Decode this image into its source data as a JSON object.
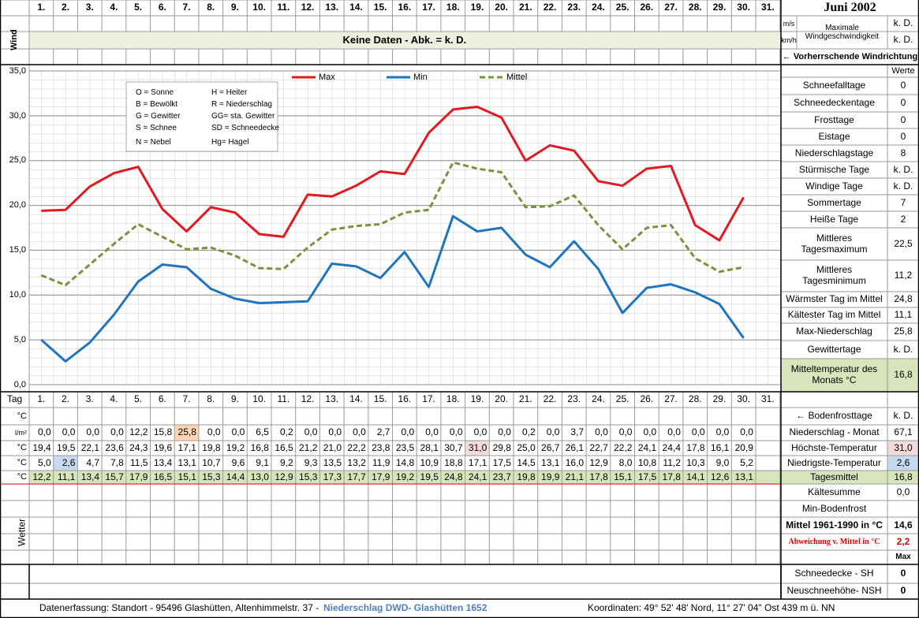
{
  "header": {
    "month": "Juni 2002"
  },
  "wind": {
    "label": "Wind",
    "note": "Keine Daten - Abk. = k. D.",
    "units": [
      "m/s",
      "km/h"
    ],
    "max_speed_label": "Maximale Windgeschwindigkeit",
    "values": [
      "k. D.",
      "k. D."
    ],
    "direction": "← Vorherrschende Windrichtung"
  },
  "chart_data": {
    "type": "line",
    "categories": [
      "1.",
      "2.",
      "3.",
      "4.",
      "5.",
      "6.",
      "7.",
      "8.",
      "9.",
      "10.",
      "11.",
      "12.",
      "13.",
      "14.",
      "15.",
      "16.",
      "17.",
      "18.",
      "19.",
      "20.",
      "21.",
      "22.",
      "23.",
      "24.",
      "25.",
      "26.",
      "27.",
      "28.",
      "29.",
      "30.",
      "31."
    ],
    "series": [
      {
        "name": "Max",
        "color": "#e3191f",
        "values": [
          19.4,
          19.5,
          22.1,
          23.6,
          24.3,
          19.6,
          17.1,
          19.8,
          19.2,
          16.8,
          16.5,
          21.2,
          21.0,
          22.2,
          23.8,
          23.5,
          28.1,
          30.7,
          31.0,
          29.8,
          25.0,
          26.7,
          26.1,
          22.7,
          22.2,
          24.1,
          24.4,
          17.8,
          16.1,
          20.9,
          null
        ],
        "value_labels": [
          "19,4",
          "19,5",
          "22,1",
          "23,6",
          "24,3",
          "19,6",
          "17,1",
          "19,8",
          "19,2",
          "16,8",
          "16,5",
          "21,2",
          "21,0",
          "22,2",
          "23,8",
          "23,5",
          "28,1",
          "30,7",
          "31,0",
          "29,8",
          "25,0",
          "26,7",
          "26,1",
          "22,7",
          "22,2",
          "24,1",
          "24,4",
          "17,8",
          "16,1",
          "20,9",
          null
        ]
      },
      {
        "name": "Min",
        "color": "#1f74bd",
        "values": [
          5.0,
          2.6,
          4.7,
          7.8,
          11.5,
          13.4,
          13.1,
          10.7,
          9.6,
          9.1,
          9.2,
          9.3,
          13.5,
          13.2,
          11.9,
          14.8,
          10.9,
          18.8,
          17.1,
          17.5,
          14.5,
          13.1,
          16.0,
          12.9,
          8.0,
          10.8,
          11.2,
          10.3,
          9.0,
          5.2,
          null
        ],
        "value_labels": [
          "5,0",
          "2,6",
          "4,7",
          "7,8",
          "11,5",
          "13,4",
          "13,1",
          "10,7",
          "9,6",
          "9,1",
          "9,2",
          "9,3",
          "13,5",
          "13,2",
          "11,9",
          "14,8",
          "10,9",
          "18,8",
          "17,1",
          "17,5",
          "14,5",
          "13,1",
          "16,0",
          "12,9",
          "8,0",
          "10,8",
          "11,2",
          "10,3",
          "9,0",
          "5,2",
          null
        ]
      },
      {
        "name": "Mittel",
        "color": "#77933c",
        "line_style": "dashed",
        "values": [
          12.2,
          11.1,
          13.4,
          15.7,
          17.9,
          16.5,
          15.1,
          15.3,
          14.4,
          13.0,
          12.9,
          15.3,
          17.3,
          17.7,
          17.9,
          19.2,
          19.5,
          24.8,
          24.1,
          23.7,
          19.8,
          19.9,
          21.1,
          17.8,
          15.1,
          17.5,
          17.8,
          14.1,
          12.6,
          13.1,
          null
        ],
        "value_labels": [
          "12,2",
          "11,1",
          "13,4",
          "15,7",
          "17,9",
          "16,5",
          "15,1",
          "15,3",
          "14,4",
          "13,0",
          "12,9",
          "15,3",
          "17,3",
          "17,7",
          "17,9",
          "19,2",
          "19,5",
          "24,8",
          "24,1",
          "23,7",
          "19,8",
          "19,9",
          "21,1",
          "17,8",
          "15,1",
          "17,5",
          "17,8",
          "14,1",
          "12,6",
          "13,1",
          null
        ]
      }
    ],
    "ylim": [
      0,
      35
    ],
    "yticks": [
      {
        "value": 0,
        "label": "0,0"
      },
      {
        "value": 5,
        "label": "5,0"
      },
      {
        "value": 10,
        "label": "10,0"
      },
      {
        "value": 15,
        "label": "15,0"
      },
      {
        "value": 20,
        "label": "20,0"
      },
      {
        "value": 25,
        "label": "25,0"
      },
      {
        "value": 30,
        "label": "30,0"
      },
      {
        "value": 35,
        "label": "35,0"
      }
    ],
    "grid": true,
    "annotations": [
      "O = Sonne",
      "H = Heiter",
      "B = Bewölkt",
      "R = Niederschlag",
      "G = Gewitter",
      "GG= sta. Gewitter",
      "S = Schnee",
      "SD = Schneedecke",
      "N = Nebel",
      "Hg= Hagel"
    ]
  },
  "summary": {
    "header": "Werte",
    "rows": [
      [
        "Schneefalltage",
        "0"
      ],
      [
        "Schneedeckentage",
        "0"
      ],
      [
        "Frosttage",
        "0"
      ],
      [
        "Eistage",
        "0"
      ],
      [
        "Niederschlagstage",
        "8"
      ],
      [
        "Stürmische Tage",
        "k. D."
      ],
      [
        "Windige Tage",
        "k. D."
      ],
      [
        "Sommertage",
        "7"
      ],
      [
        "Heiße Tage",
        "2"
      ],
      [
        "Mittleres Tagesmaximum",
        "22,5"
      ],
      [
        "Mittleres Tagesminimum",
        "11,2"
      ],
      [
        "Wärmster Tag im Mittel",
        "24,8"
      ],
      [
        "Kältester Tag im Mittel",
        "11,1"
      ],
      [
        "Max-Niederschlag",
        "25,8"
      ],
      [
        "Gewittertage",
        "k. D."
      ],
      [
        "Mitteltemperatur des Monats °C",
        "16,8"
      ]
    ]
  },
  "table": {
    "day_label": "Tag",
    "units": [
      "°C",
      "l/m²",
      "°C",
      "°C",
      "°C"
    ],
    "weather_label": "Wetter",
    "precipitation": [
      "0,0",
      "0,0",
      "0,0",
      "0,0",
      "12,2",
      "15,8",
      "25,8",
      "0,0",
      "0,0",
      "6,5",
      "0,2",
      "0,0",
      "0,0",
      "0,0",
      "2,7",
      "0,0",
      "0,0",
      "0,0",
      "0,0",
      "0,0",
      "0,2",
      "0,0",
      "3,7",
      "0,0",
      "0,0",
      "0,0",
      "0,0",
      "0,0",
      "0,0",
      "0,0"
    ]
  },
  "stats": {
    "rows": [
      {
        "label": "← Bodenfrosttage",
        "value": "k. D."
      },
      {
        "label": "Niederschlag - Monat",
        "value": "67,1"
      },
      {
        "label": "Höchste-Temperatur",
        "value": "31,0"
      },
      {
        "label": "Niedrigste-Temperatur",
        "value": "2,6"
      },
      {
        "label": "Tagesmittel",
        "value": "16,8"
      },
      {
        "label": "Kältesumme",
        "value": "0,0"
      },
      {
        "label": "Min-Bodenfrost"
      },
      {
        "label": "Mittel 1961-1990 in °C",
        "value": "14,6"
      },
      {
        "label": "Abweichung v. Mittel in °C",
        "value": "2,2"
      },
      {
        "value": "Max"
      },
      {
        "label": "Schneedecke -   SH",
        "value": "0"
      },
      {
        "label": "Neuschneehöhe- NSH",
        "value": "0"
      }
    ]
  },
  "footer": {
    "left": "Datenerfassung:  Standort -  95496  Glashütten, Altenhimmelstr. 37 -",
    "source": "Niederschlag DWD- Glashütten 1652",
    "coordinates": "Koordinaten:  49° 52' 48' Nord,   11° 27' 04\" Ost   439 m ü. NN"
  }
}
